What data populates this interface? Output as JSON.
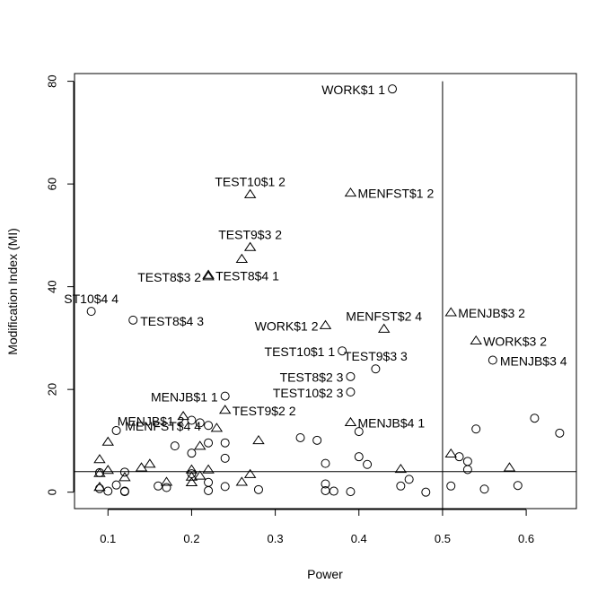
{
  "chart_data": {
    "type": "scatter",
    "title": "",
    "xlabel": "Power",
    "ylabel": "Modification Index (MI)",
    "xlim": [
      0.06,
      0.66
    ],
    "ylim": [
      -3.2,
      81.5
    ],
    "xticks": [
      0.1,
      0.2,
      0.3,
      0.4,
      0.5,
      0.6
    ],
    "xtick_labels": [
      "0.1",
      "0.2",
      "0.3",
      "0.4",
      "0.5",
      "0.6"
    ],
    "yticks": [
      0,
      20,
      40,
      60,
      80
    ],
    "ytick_labels": [
      "0",
      "20",
      "40",
      "60",
      "80"
    ],
    "reference_lines": {
      "vertical_x": 0.5,
      "horizontal_y": 4
    },
    "grid": false,
    "series": [
      {
        "marker": "circle",
        "points": [
          {
            "x": 0.44,
            "y": 78.5,
            "label": "WORK$1 1",
            "label_side": "left"
          },
          {
            "x": 0.08,
            "y": 35.2,
            "label": "ST10$4 4",
            "label_side": "above"
          },
          {
            "x": 0.13,
            "y": 33.5,
            "label": "TEST8$4 3",
            "label_side": "right"
          },
          {
            "x": 0.38,
            "y": 27.5,
            "label": "TEST10$1 1",
            "label_side": "left"
          },
          {
            "x": 0.42,
            "y": 24.0,
            "label": "TEST9$3 3",
            "label_side": "above"
          },
          {
            "x": 0.56,
            "y": 25.7,
            "label": "MENJB$3 4",
            "label_side": "right"
          },
          {
            "x": 0.39,
            "y": 22.5,
            "label": "TEST8$2 3",
            "label_side": "left"
          },
          {
            "x": 0.39,
            "y": 19.5,
            "label": "TEST10$2 3",
            "label_side": "left"
          },
          {
            "x": 0.24,
            "y": 18.7,
            "label": "MENJB$1 1",
            "label_side": "left"
          },
          {
            "x": 0.2,
            "y": 14.0,
            "label": "MENJB$1 2",
            "label_side": "left"
          },
          {
            "x": 0.22,
            "y": 13.0,
            "label": "MENFST$4 4",
            "label_side": "left"
          },
          {
            "x": 0.11,
            "y": 12.0
          },
          {
            "x": 0.18,
            "y": 9.0
          },
          {
            "x": 0.21,
            "y": 13.5
          },
          {
            "x": 0.2,
            "y": 7.6
          },
          {
            "x": 0.22,
            "y": 9.6
          },
          {
            "x": 0.24,
            "y": 9.6
          },
          {
            "x": 0.24,
            "y": 6.6
          },
          {
            "x": 0.33,
            "y": 10.6
          },
          {
            "x": 0.35,
            "y": 10.1
          },
          {
            "x": 0.36,
            "y": 5.6
          },
          {
            "x": 0.4,
            "y": 11.8
          },
          {
            "x": 0.4,
            "y": 6.9
          },
          {
            "x": 0.41,
            "y": 5.4
          },
          {
            "x": 0.12,
            "y": 3.9
          },
          {
            "x": 0.09,
            "y": 3.8
          },
          {
            "x": 0.09,
            "y": 0.7
          },
          {
            "x": 0.1,
            "y": 0.2
          },
          {
            "x": 0.11,
            "y": 1.4
          },
          {
            "x": 0.12,
            "y": 0.2
          },
          {
            "x": 0.12,
            "y": 0.1
          },
          {
            "x": 0.16,
            "y": 1.2
          },
          {
            "x": 0.17,
            "y": 0.9
          },
          {
            "x": 0.2,
            "y": 3.6
          },
          {
            "x": 0.22,
            "y": 1.9
          },
          {
            "x": 0.22,
            "y": 0.3
          },
          {
            "x": 0.24,
            "y": 1.1
          },
          {
            "x": 0.28,
            "y": 0.5
          },
          {
            "x": 0.36,
            "y": 1.6
          },
          {
            "x": 0.36,
            "y": 0.3
          },
          {
            "x": 0.37,
            "y": 0.2
          },
          {
            "x": 0.39,
            "y": 0.1
          },
          {
            "x": 0.45,
            "y": 1.2
          },
          {
            "x": 0.46,
            "y": 2.5
          },
          {
            "x": 0.48,
            "y": 0.0
          },
          {
            "x": 0.51,
            "y": 1.2
          },
          {
            "x": 0.52,
            "y": 6.9
          },
          {
            "x": 0.53,
            "y": 6.0
          },
          {
            "x": 0.53,
            "y": 4.4
          },
          {
            "x": 0.54,
            "y": 12.3
          },
          {
            "x": 0.55,
            "y": 0.6
          },
          {
            "x": 0.59,
            "y": 1.3
          },
          {
            "x": 0.61,
            "y": 14.4
          },
          {
            "x": 0.64,
            "y": 11.5
          }
        ]
      },
      {
        "marker": "triangle",
        "points": [
          {
            "x": 0.27,
            "y": 58.0,
            "label": "TEST10$1 2",
            "label_side": "above"
          },
          {
            "x": 0.39,
            "y": 58.3,
            "label": "MENFST$1 2",
            "label_side": "right"
          },
          {
            "x": 0.27,
            "y": 47.7,
            "label": "TEST9$3 2",
            "label_side": "above"
          },
          {
            "x": 0.26,
            "y": 45.4
          },
          {
            "x": 0.22,
            "y": 42.0,
            "label": "TEST8$3 2",
            "label_side": "left"
          },
          {
            "x": 0.22,
            "y": 42.3,
            "label": "TEST8$4 1",
            "label_side": "right"
          },
          {
            "x": 0.36,
            "y": 32.5,
            "label": "WORK$1 2",
            "label_side": "left"
          },
          {
            "x": 0.43,
            "y": 31.8,
            "label": "MENFST$2 4",
            "label_side": "above"
          },
          {
            "x": 0.51,
            "y": 35.0,
            "label": "MENJB$3 2",
            "label_side": "right"
          },
          {
            "x": 0.54,
            "y": 29.5,
            "label": "WORK$3 2",
            "label_side": "right"
          },
          {
            "x": 0.24,
            "y": 16.0,
            "label": "TEST9$2 2",
            "label_side": "right"
          },
          {
            "x": 0.39,
            "y": 13.6,
            "label": "MENJB$4 1",
            "label_side": "right"
          },
          {
            "x": 0.19,
            "y": 14.8
          },
          {
            "x": 0.21,
            "y": 9.0
          },
          {
            "x": 0.23,
            "y": 12.5
          },
          {
            "x": 0.28,
            "y": 10.1
          },
          {
            "x": 0.1,
            "y": 9.8
          },
          {
            "x": 0.09,
            "y": 6.4
          },
          {
            "x": 0.1,
            "y": 4.3
          },
          {
            "x": 0.14,
            "y": 4.8
          },
          {
            "x": 0.15,
            "y": 5.5
          },
          {
            "x": 0.09,
            "y": 3.7
          },
          {
            "x": 0.09,
            "y": 1.0
          },
          {
            "x": 0.12,
            "y": 2.9
          },
          {
            "x": 0.17,
            "y": 2.0
          },
          {
            "x": 0.2,
            "y": 4.4
          },
          {
            "x": 0.2,
            "y": 3.0
          },
          {
            "x": 0.2,
            "y": 1.9
          },
          {
            "x": 0.21,
            "y": 3.2
          },
          {
            "x": 0.22,
            "y": 4.4
          },
          {
            "x": 0.26,
            "y": 2.0
          },
          {
            "x": 0.27,
            "y": 3.5
          },
          {
            "x": 0.45,
            "y": 4.5
          },
          {
            "x": 0.51,
            "y": 7.5
          },
          {
            "x": 0.58,
            "y": 4.8
          }
        ]
      }
    ]
  }
}
